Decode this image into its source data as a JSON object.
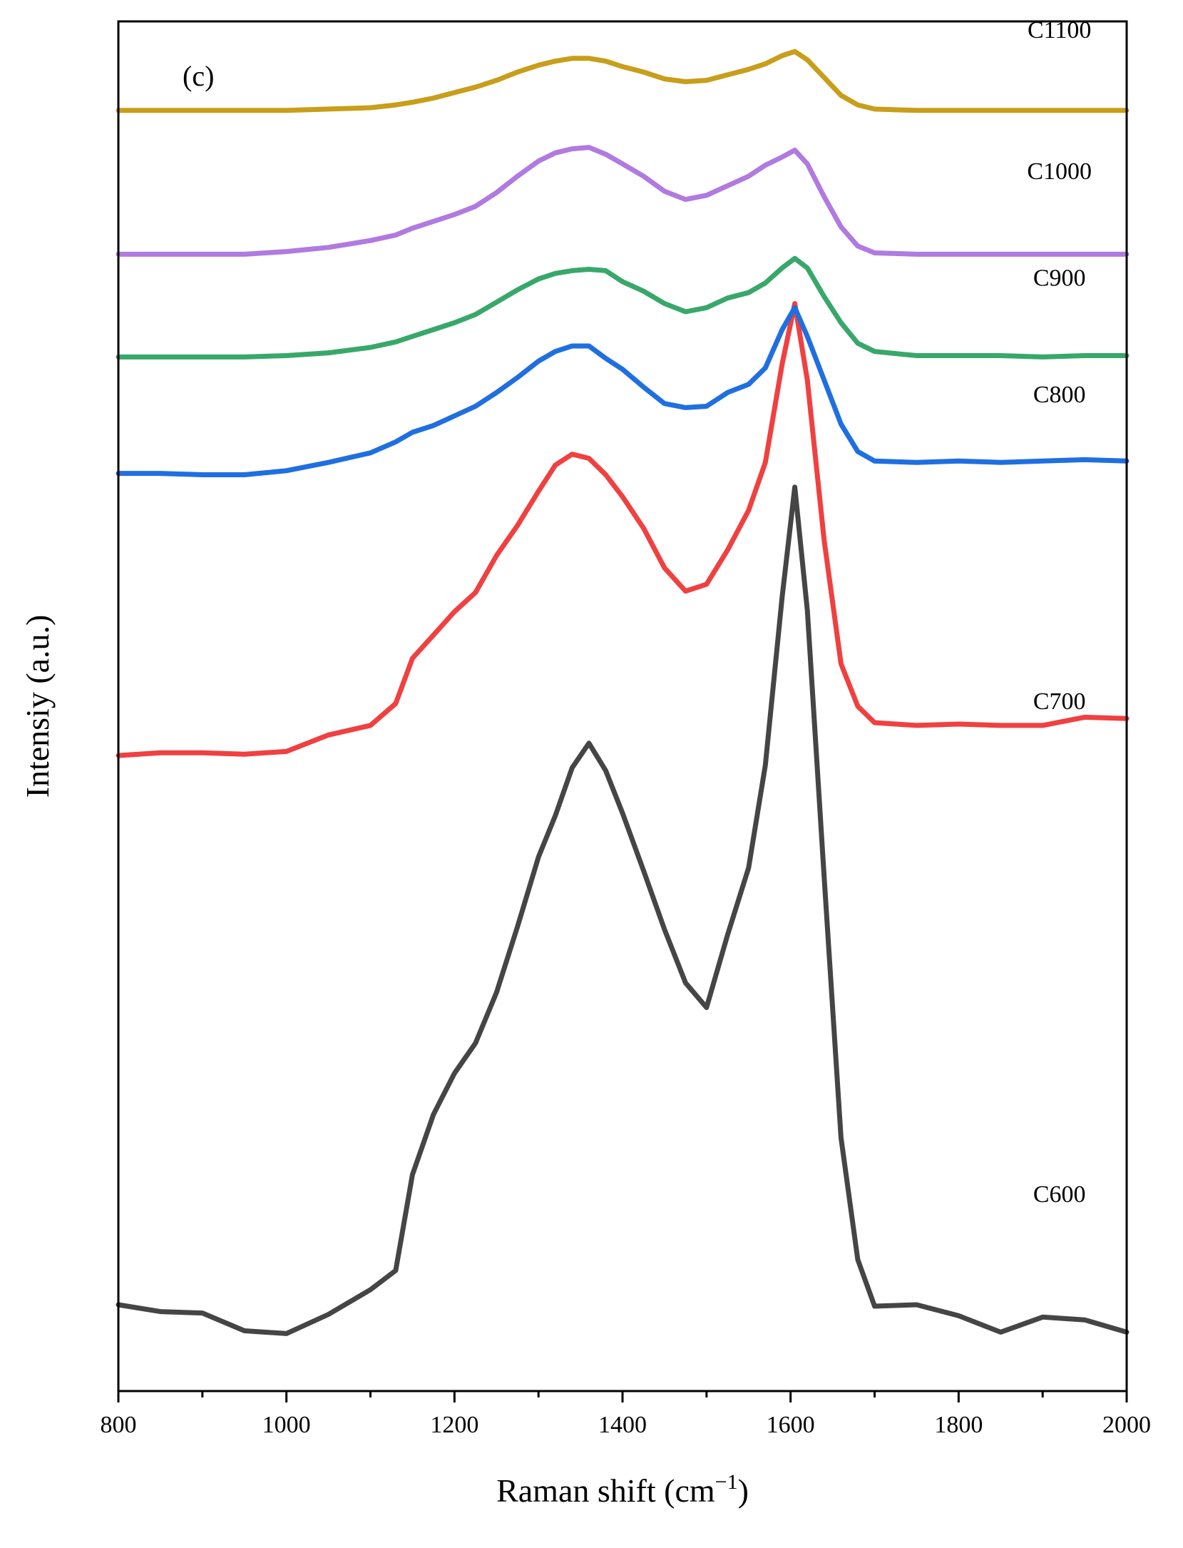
{
  "chart_data": {
    "type": "line",
    "panel_label": "(c)",
    "xlabel": "Raman shift (cm",
    "xlabel_sup": "−1",
    "xlabel_close": ")",
    "ylabel": "Intensiy (a.u.)",
    "xlim": [
      800,
      2000
    ],
    "ylim": [
      0,
      100
    ],
    "x_ticks": [
      800,
      1000,
      1200,
      1400,
      1600,
      1800,
      2000
    ],
    "x_tick_labels": [
      "800",
      "1000",
      "1200",
      "1400",
      "1600",
      "1800",
      "2000"
    ],
    "y_ticks_shown": false,
    "grid": false,
    "legend": "labels next to curves on the right",
    "x": [
      800,
      850,
      900,
      950,
      1000,
      1050,
      1100,
      1130,
      1150,
      1175,
      1200,
      1225,
      1250,
      1275,
      1300,
      1320,
      1340,
      1360,
      1380,
      1400,
      1425,
      1450,
      1475,
      1500,
      1525,
      1550,
      1570,
      1590,
      1605,
      1620,
      1640,
      1660,
      1680,
      1700,
      1750,
      1800,
      1850,
      1900,
      1950,
      2000
    ],
    "series": [
      {
        "name": "C600",
        "color": "#454545",
        "label_pos": [
          1920,
          13.8
        ],
        "values": [
          6.3,
          5.8,
          5.7,
          4.4,
          4.2,
          5.6,
          7.4,
          8.8,
          15.8,
          20.2,
          23.2,
          25.4,
          29.1,
          33.9,
          39.0,
          42.0,
          45.5,
          47.3,
          45.3,
          42.2,
          38.0,
          33.7,
          29.8,
          28.0,
          33.3,
          38.2,
          45.7,
          58.0,
          66.0,
          57.0,
          37.5,
          18.5,
          9.6,
          6.2,
          6.3,
          5.5,
          4.3,
          5.4,
          5.2,
          4.3
        ]
      },
      {
        "name": "C700",
        "color": "#f04040",
        "label_pos": [
          1920,
          49.8
        ],
        "values": [
          46.4,
          46.6,
          46.6,
          46.5,
          46.7,
          47.9,
          48.6,
          50.2,
          53.5,
          55.2,
          56.9,
          58.3,
          61.0,
          63.2,
          65.7,
          67.6,
          68.4,
          68.1,
          66.9,
          65.3,
          63.0,
          60.1,
          58.4,
          58.9,
          61.4,
          64.3,
          67.8,
          75.0,
          79.4,
          73.8,
          62.1,
          53.1,
          50.0,
          48.8,
          48.6,
          48.7,
          48.6,
          48.6,
          49.2,
          49.1
        ]
      },
      {
        "name": "C800",
        "color": "#1f6fe0",
        "label_pos": [
          1920,
          72.2
        ],
        "values": [
          67.0,
          67.0,
          66.9,
          66.9,
          67.2,
          67.8,
          68.5,
          69.3,
          70.0,
          70.5,
          71.2,
          71.9,
          72.9,
          74.0,
          75.2,
          75.9,
          76.3,
          76.3,
          75.4,
          74.6,
          73.3,
          72.1,
          71.8,
          71.9,
          72.9,
          73.5,
          74.7,
          77.5,
          79.1,
          77.0,
          73.8,
          70.6,
          68.6,
          67.9,
          67.8,
          67.9,
          67.8,
          67.9,
          68.0,
          67.9
        ]
      },
      {
        "name": "C900",
        "color": "#38a86a",
        "label_pos": [
          1920,
          80.7
        ],
        "values": [
          75.5,
          75.5,
          75.5,
          75.5,
          75.6,
          75.8,
          76.2,
          76.6,
          77.0,
          77.5,
          78.0,
          78.6,
          79.5,
          80.4,
          81.2,
          81.6,
          81.8,
          81.9,
          81.8,
          81.0,
          80.3,
          79.4,
          78.8,
          79.1,
          79.8,
          80.2,
          80.9,
          82.0,
          82.7,
          82.0,
          79.9,
          78.0,
          76.5,
          75.9,
          75.6,
          75.6,
          75.6,
          75.5,
          75.6,
          75.6
        ]
      },
      {
        "name": "C1000",
        "color": "#b07ae0",
        "label_pos": [
          1920,
          88.5
        ],
        "values": [
          83.0,
          83.0,
          83.0,
          83.0,
          83.2,
          83.5,
          84.0,
          84.4,
          84.9,
          85.4,
          85.9,
          86.5,
          87.5,
          88.7,
          89.8,
          90.4,
          90.7,
          90.8,
          90.3,
          89.6,
          88.7,
          87.6,
          87.0,
          87.3,
          88.0,
          88.7,
          89.5,
          90.1,
          90.6,
          89.6,
          87.2,
          85.0,
          83.6,
          83.1,
          83.0,
          83.0,
          83.0,
          83.0,
          83.0,
          83.0
        ]
      },
      {
        "name": "C1100",
        "color": "#c89e1a",
        "label_pos": [
          1920,
          98.8
        ],
        "values": [
          93.5,
          93.5,
          93.5,
          93.5,
          93.5,
          93.6,
          93.7,
          93.9,
          94.1,
          94.4,
          94.8,
          95.2,
          95.7,
          96.3,
          96.8,
          97.1,
          97.3,
          97.3,
          97.1,
          96.7,
          96.3,
          95.8,
          95.6,
          95.7,
          96.1,
          96.5,
          96.9,
          97.5,
          97.8,
          97.2,
          95.9,
          94.6,
          93.9,
          93.6,
          93.5,
          93.5,
          93.5,
          93.5,
          93.5,
          93.5
        ]
      }
    ]
  }
}
